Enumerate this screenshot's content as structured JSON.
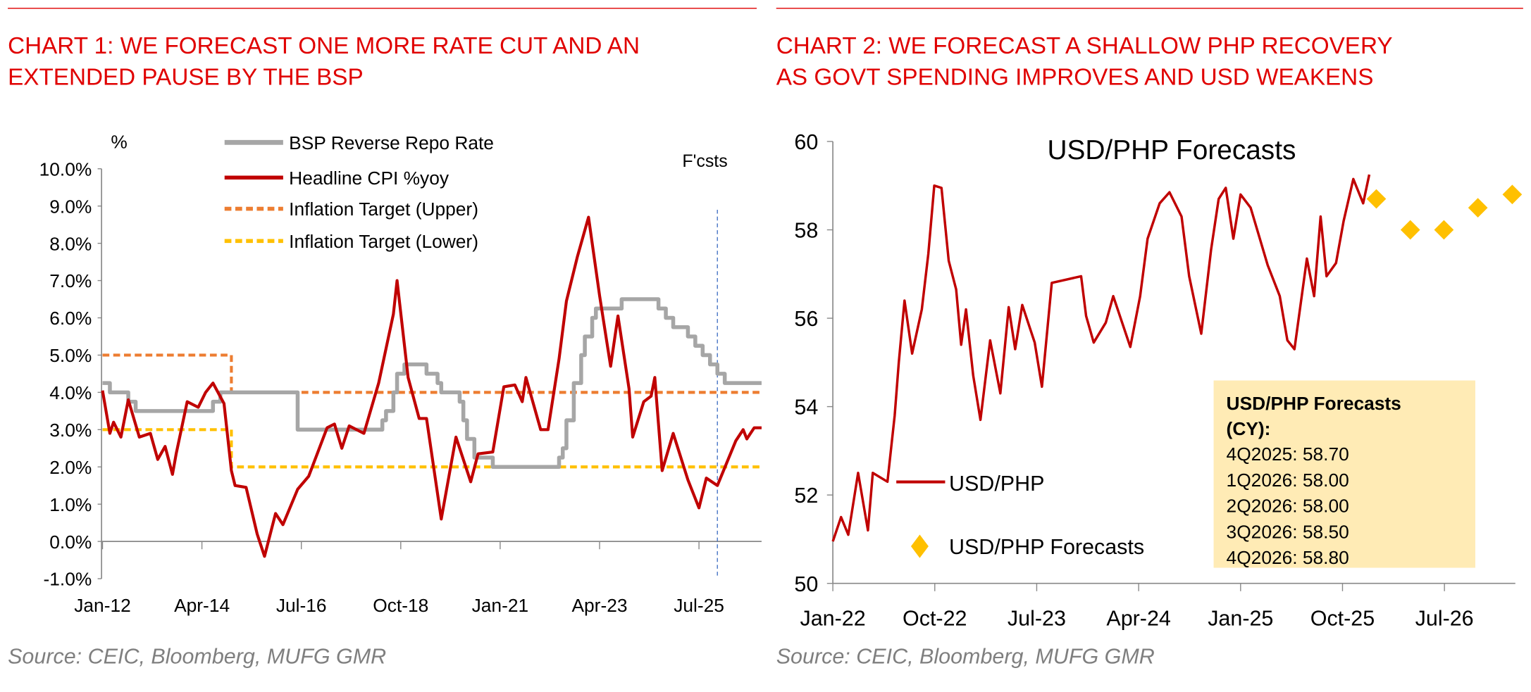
{
  "left_panel": {
    "title_lines": [
      "CHART 1: WE FORECAST ONE MORE RATE CUT AND AN",
      "EXTENDED PAUSE BY THE BSP"
    ],
    "source": "Source: CEIC, Bloomberg, MUFG GMR"
  },
  "right_panel": {
    "title_lines": [
      "CHART 2: WE FORECAST A SHALLOW PHP RECOVERY",
      "AS GOVT SPENDING IMPROVES AND USD WEAKENS"
    ],
    "source": "Source: CEIC, Bloomberg, MUFG GMR"
  },
  "colors": {
    "title_red": "#e00000",
    "cpi": "#c00000",
    "repo": "#a6a6a6",
    "upper": "#ed7d31",
    "lower": "#ffc000",
    "forecast_line": "#4472c4",
    "usdphp": "#c00000",
    "forecast_marker": "#ffc000",
    "box_fill": "#ffebb5"
  },
  "chart_data": [
    {
      "type": "line",
      "ylabel": "%",
      "ylim": [
        -1,
        10
      ],
      "yticks": [
        "10.0%",
        "9.0%",
        "8.0%",
        "7.0%",
        "6.0%",
        "5.0%",
        "4.0%",
        "3.0%",
        "2.0%",
        "1.0%",
        "0.0%",
        "-1.0%"
      ],
      "ytick_values": [
        10,
        9,
        8,
        7,
        6,
        5,
        4,
        3,
        2,
        1,
        0,
        -1
      ],
      "xlim": [
        "2012-01",
        "2026-12"
      ],
      "xticks": [
        "Jan-12",
        "Apr-14",
        "Jul-16",
        "Oct-18",
        "Jan-21",
        "Apr-23",
        "Jul-25"
      ],
      "xtick_dates": [
        "2012-01",
        "2014-04",
        "2016-07",
        "2018-10",
        "2021-01",
        "2023-04",
        "2025-07"
      ],
      "grid": false,
      "legend": "top-center",
      "annotation": {
        "text": "F'csts",
        "date": "2025-12"
      },
      "series": [
        {
          "name": "BSP Reverse Repo Rate",
          "style": "step",
          "points": [
            [
              "2012-01",
              4.25
            ],
            [
              "2012-03",
              4.0
            ],
            [
              "2012-08",
              3.75
            ],
            [
              "2012-10",
              3.5
            ],
            [
              "2014-07",
              3.75
            ],
            [
              "2014-09",
              4.0
            ],
            [
              "2016-06",
              3.0
            ],
            [
              "2018-05",
              3.25
            ],
            [
              "2018-06",
              3.5
            ],
            [
              "2018-08",
              4.0
            ],
            [
              "2018-09",
              4.5
            ],
            [
              "2018-11",
              4.75
            ],
            [
              "2019-05",
              4.5
            ],
            [
              "2019-08",
              4.25
            ],
            [
              "2019-09",
              4.0
            ],
            [
              "2020-02",
              3.75
            ],
            [
              "2020-03",
              3.25
            ],
            [
              "2020-04",
              2.75
            ],
            [
              "2020-06",
              2.25
            ],
            [
              "2020-11",
              2.0
            ],
            [
              "2022-05",
              2.25
            ],
            [
              "2022-06",
              2.5
            ],
            [
              "2022-07",
              3.25
            ],
            [
              "2022-09",
              4.25
            ],
            [
              "2022-11",
              5.0
            ],
            [
              "2022-12",
              5.5
            ],
            [
              "2023-02",
              6.0
            ],
            [
              "2023-03",
              6.25
            ],
            [
              "2023-10",
              6.5
            ],
            [
              "2024-08",
              6.25
            ],
            [
              "2024-10",
              6.0
            ],
            [
              "2024-12",
              5.75
            ],
            [
              "2025-04",
              5.5
            ],
            [
              "2025-06",
              5.25
            ],
            [
              "2025-08",
              5.0
            ],
            [
              "2025-10",
              4.75
            ],
            [
              "2025-12",
              4.5
            ],
            [
              "2026-02",
              4.25
            ],
            [
              "2026-12",
              4.25
            ]
          ]
        },
        {
          "name": "Headline CPI %yoy",
          "style": "line",
          "points": [
            [
              "2012-01",
              4.05
            ],
            [
              "2012-03",
              2.9
            ],
            [
              "2012-04",
              3.2
            ],
            [
              "2012-06",
              2.8
            ],
            [
              "2012-08",
              3.8
            ],
            [
              "2012-11",
              2.8
            ],
            [
              "2013-02",
              2.9
            ],
            [
              "2013-04",
              2.2
            ],
            [
              "2013-06",
              2.55
            ],
            [
              "2013-08",
              1.8
            ],
            [
              "2013-09",
              2.35
            ],
            [
              "2013-12",
              3.75
            ],
            [
              "2014-03",
              3.6
            ],
            [
              "2014-05",
              4.0
            ],
            [
              "2014-07",
              4.25
            ],
            [
              "2014-10",
              3.7
            ],
            [
              "2014-12",
              1.9
            ],
            [
              "2015-01",
              1.5
            ],
            [
              "2015-04",
              1.45
            ],
            [
              "2015-07",
              0.2
            ],
            [
              "2015-09",
              -0.4
            ],
            [
              "2015-12",
              0.75
            ],
            [
              "2016-02",
              0.45
            ],
            [
              "2016-06",
              1.4
            ],
            [
              "2016-09",
              1.75
            ],
            [
              "2017-02",
              3.05
            ],
            [
              "2017-04",
              3.15
            ],
            [
              "2017-06",
              2.5
            ],
            [
              "2017-08",
              3.1
            ],
            [
              "2017-12",
              2.9
            ],
            [
              "2018-04",
              4.25
            ],
            [
              "2018-08",
              6.1
            ],
            [
              "2018-09",
              7.0
            ],
            [
              "2018-12",
              4.4
            ],
            [
              "2019-03",
              3.3
            ],
            [
              "2019-05",
              3.3
            ],
            [
              "2019-09",
              0.6
            ],
            [
              "2020-01",
              2.8
            ],
            [
              "2020-05",
              1.6
            ],
            [
              "2020-07",
              2.35
            ],
            [
              "2020-11",
              2.4
            ],
            [
              "2021-02",
              4.15
            ],
            [
              "2021-05",
              4.2
            ],
            [
              "2021-07",
              3.75
            ],
            [
              "2021-08",
              4.4
            ],
            [
              "2021-12",
              3.0
            ],
            [
              "2022-02",
              3.0
            ],
            [
              "2022-05",
              4.9
            ],
            [
              "2022-07",
              6.45
            ],
            [
              "2022-10",
              7.65
            ],
            [
              "2023-01",
              8.7
            ],
            [
              "2023-04",
              6.6
            ],
            [
              "2023-07",
              4.7
            ],
            [
              "2023-09",
              6.05
            ],
            [
              "2023-12",
              4.1
            ],
            [
              "2024-01",
              2.8
            ],
            [
              "2024-04",
              3.75
            ],
            [
              "2024-06",
              3.9
            ],
            [
              "2024-07",
              4.4
            ],
            [
              "2024-09",
              1.9
            ],
            [
              "2024-12",
              2.9
            ],
            [
              "2025-04",
              1.65
            ],
            [
              "2025-07",
              0.9
            ],
            [
              "2025-09",
              1.7
            ],
            [
              "2025-12",
              1.5
            ],
            [
              "2026-05",
              2.7
            ],
            [
              "2026-07",
              3.0
            ],
            [
              "2026-08",
              2.75
            ],
            [
              "2026-10",
              3.05
            ],
            [
              "2026-12",
              3.05
            ]
          ]
        },
        {
          "name": "Inflation Target (Upper)",
          "style": "step-dashed",
          "points": [
            [
              "2012-01",
              5.0
            ],
            [
              "2014-12",
              4.0
            ],
            [
              "2026-12",
              4.0
            ]
          ]
        },
        {
          "name": "Inflation Target (Lower)",
          "style": "step-dashed",
          "points": [
            [
              "2012-01",
              3.0
            ],
            [
              "2014-12",
              2.0
            ],
            [
              "2026-12",
              2.0
            ]
          ]
        }
      ]
    },
    {
      "type": "line",
      "title": "USD/PHP Forecasts",
      "ylim": [
        50,
        60
      ],
      "yticks": [
        "60",
        "58",
        "56",
        "54",
        "52",
        "50"
      ],
      "ytick_values": [
        60,
        58,
        56,
        54,
        52,
        50
      ],
      "xlim": [
        "2022-01-01",
        "2027-01-01"
      ],
      "xticks": [
        "Jan-22",
        "Oct-22",
        "Jul-23",
        "Apr-24",
        "Jan-25",
        "Oct-25",
        "Jul-26"
      ],
      "xtick_dates": [
        "2022-01-01",
        "2022-10-01",
        "2023-07-01",
        "2024-04-01",
        "2025-01-01",
        "2025-10-01",
        "2026-07-01"
      ],
      "grid": false,
      "legend": "bottom-left",
      "series": [
        {
          "name": "USD/PHP",
          "style": "line",
          "points": [
            [
              "2022-01-01",
              50.95
            ],
            [
              "2022-01-23",
              51.5
            ],
            [
              "2022-02-12",
              51.1
            ],
            [
              "2022-03-08",
              52.5
            ],
            [
              "2022-04-04",
              51.2
            ],
            [
              "2022-04-17",
              52.5
            ],
            [
              "2022-05-26",
              52.3
            ],
            [
              "2022-06-15",
              53.8
            ],
            [
              "2022-06-26",
              55.0
            ],
            [
              "2022-07-11",
              56.4
            ],
            [
              "2022-08-01",
              55.2
            ],
            [
              "2022-08-27",
              56.2
            ],
            [
              "2022-09-14",
              57.45
            ],
            [
              "2022-09-30",
              59.0
            ],
            [
              "2022-10-19",
              58.95
            ],
            [
              "2022-11-08",
              57.3
            ],
            [
              "2022-11-28",
              56.65
            ],
            [
              "2022-12-11",
              55.4
            ],
            [
              "2022-12-24",
              56.2
            ],
            [
              "2023-01-13",
              54.7
            ],
            [
              "2023-02-02",
              53.7
            ],
            [
              "2023-02-28",
              55.5
            ],
            [
              "2023-03-25",
              54.3
            ],
            [
              "2023-04-17",
              56.25
            ],
            [
              "2023-05-04",
              55.3
            ],
            [
              "2023-05-23",
              56.3
            ],
            [
              "2023-06-26",
              55.45
            ],
            [
              "2023-07-15",
              54.45
            ],
            [
              "2023-08-11",
              56.8
            ],
            [
              "2023-09-07",
              56.85
            ],
            [
              "2023-10-29",
              56.95
            ],
            [
              "2023-11-12",
              56.05
            ],
            [
              "2023-12-02",
              55.45
            ],
            [
              "2024-01-04",
              55.9
            ],
            [
              "2024-01-24",
              56.5
            ],
            [
              "2024-03-09",
              55.35
            ],
            [
              "2024-04-05",
              56.5
            ],
            [
              "2024-04-25",
              57.8
            ],
            [
              "2024-05-27",
              58.6
            ],
            [
              "2024-06-23",
              58.85
            ],
            [
              "2024-07-25",
              58.3
            ],
            [
              "2024-08-15",
              56.95
            ],
            [
              "2024-09-17",
              55.65
            ],
            [
              "2024-10-13",
              57.55
            ],
            [
              "2024-11-03",
              58.7
            ],
            [
              "2024-11-22",
              58.95
            ],
            [
              "2024-12-12",
              57.8
            ],
            [
              "2025-01-01",
              58.8
            ],
            [
              "2025-01-28",
              58.5
            ],
            [
              "2025-02-17",
              57.95
            ],
            [
              "2025-03-13",
              57.2
            ],
            [
              "2025-04-15",
              56.5
            ],
            [
              "2025-05-05",
              55.5
            ],
            [
              "2025-05-24",
              55.3
            ],
            [
              "2025-06-27",
              57.35
            ],
            [
              "2025-07-16",
              56.5
            ],
            [
              "2025-08-03",
              58.3
            ],
            [
              "2025-08-19",
              56.95
            ],
            [
              "2025-09-14",
              57.25
            ],
            [
              "2025-10-04",
              58.2
            ],
            [
              "2025-10-30",
              59.15
            ],
            [
              "2025-11-26",
              58.6
            ],
            [
              "2025-12-12",
              59.25
            ]
          ]
        },
        {
          "name": "USD/PHP Forecasts",
          "style": "marker",
          "points": [
            [
              "2025-12-31",
              58.7
            ],
            [
              "2026-03-31",
              58.0
            ],
            [
              "2026-06-30",
              58.0
            ],
            [
              "2026-09-30",
              58.5
            ],
            [
              "2026-12-31",
              58.8
            ]
          ]
        }
      ],
      "box": {
        "heading": [
          "USD/PHP Forecasts",
          "(CY):"
        ],
        "lines": [
          "4Q2025: 58.70",
          "1Q2026: 58.00",
          "2Q2026: 58.00",
          "3Q2026: 58.50",
          "4Q2026: 58.80"
        ]
      }
    }
  ]
}
